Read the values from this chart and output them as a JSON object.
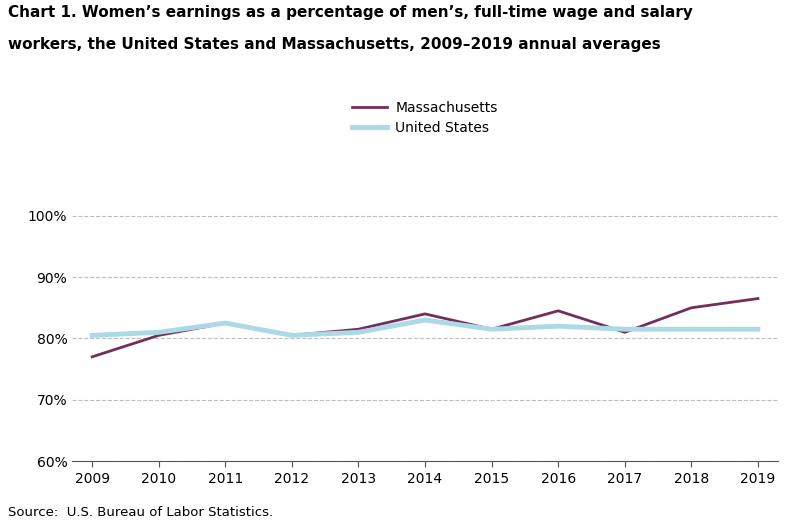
{
  "title_line1": "Chart 1. Women’s earnings as a percentage of men’s, full-time wage and salary",
  "title_line2": "workers, the United States and Massachusetts, 2009–2019 annual averages",
  "years": [
    2009,
    2010,
    2011,
    2012,
    2013,
    2014,
    2015,
    2016,
    2017,
    2018,
    2019
  ],
  "massachusetts": [
    77.0,
    80.5,
    82.5,
    80.5,
    81.5,
    84.0,
    81.5,
    84.5,
    81.0,
    85.0,
    86.5
  ],
  "united_states": [
    80.5,
    81.0,
    82.5,
    80.5,
    81.0,
    83.0,
    81.5,
    82.0,
    81.5,
    81.5,
    81.5
  ],
  "ma_color": "#722F5B",
  "us_color": "#ADD8E6",
  "ylim": [
    60,
    101
  ],
  "yticks": [
    60,
    70,
    80,
    90,
    100
  ],
  "ytick_labels": [
    "60%",
    "70%",
    "80%",
    "90%",
    "100%"
  ],
  "source_text": "Source:  U.S. Bureau of Labor Statistics.",
  "legend_labels": [
    "Massachusetts",
    "United States"
  ],
  "grid_color": "#BEBEBE",
  "ma_linewidth": 2.0,
  "us_linewidth": 3.5,
  "title_fontsize": 11,
  "tick_fontsize": 10,
  "source_fontsize": 9.5
}
